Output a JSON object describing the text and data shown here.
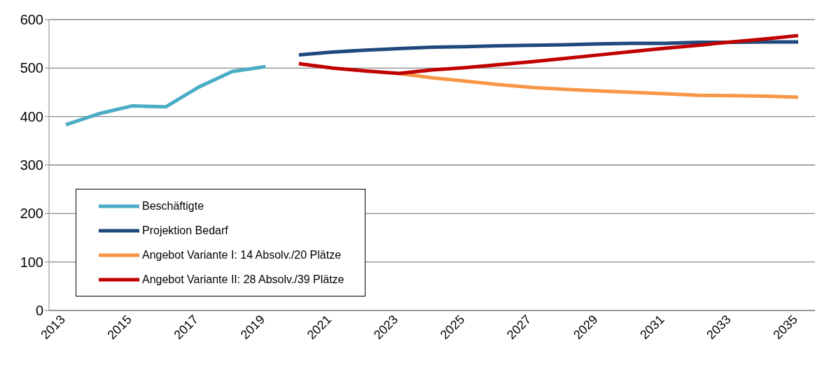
{
  "chart_data": {
    "type": "line",
    "categories": [
      "2013",
      null,
      "2015",
      null,
      "2017",
      null,
      "2019",
      null,
      "2021",
      null,
      "2023",
      null,
      "2025",
      null,
      "2027",
      null,
      "2029",
      null,
      "2031",
      null,
      "2033",
      null,
      "2035"
    ],
    "series": [
      {
        "name": "Beschäftigte",
        "color": "#4bacc6",
        "values": [
          383,
          406,
          422,
          420,
          461,
          493,
          503,
          null,
          null,
          null,
          null,
          null,
          null,
          null,
          null,
          null,
          null,
          null,
          null,
          null,
          null,
          null,
          null
        ]
      },
      {
        "name": "Projektion Bedarf",
        "color": "#1f497d",
        "values": [
          null,
          null,
          null,
          null,
          null,
          null,
          null,
          527,
          533,
          537,
          540,
          543,
          544,
          546,
          547,
          548,
          550,
          551,
          551,
          553,
          553,
          554,
          554
        ]
      },
      {
        "name": "Angebot Variante I: 14 Absolv./20 Plätze",
        "color": "#f79646",
        "values": [
          null,
          null,
          null,
          null,
          null,
          null,
          null,
          null,
          null,
          null,
          489,
          480,
          473,
          466,
          460,
          456,
          453,
          450,
          447,
          444,
          443,
          442,
          440
        ]
      },
      {
        "name": "Angebot Variante II: 28 Absolv./39 Plätze",
        "color": "#c00000",
        "values": [
          null,
          null,
          null,
          null,
          null,
          null,
          null,
          509,
          500,
          494,
          489,
          496,
          501,
          507,
          513,
          520,
          527,
          534,
          541,
          547,
          554,
          560,
          567
        ]
      }
    ],
    "ylim": [
      0,
      600
    ],
    "yticks": [
      0,
      100,
      200,
      300,
      400,
      500,
      600
    ],
    "grid": "y",
    "legend": "bottom left",
    "marker": "none",
    "line_style": "solid"
  }
}
